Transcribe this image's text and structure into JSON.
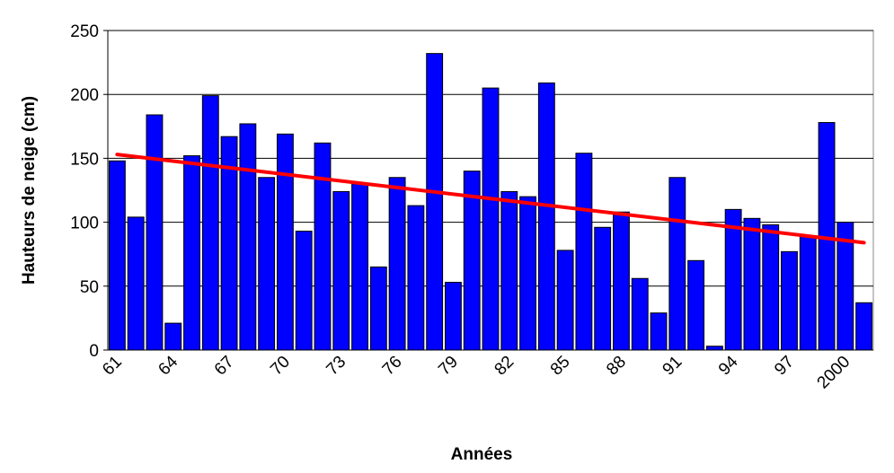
{
  "chart_data": {
    "type": "bar",
    "x_label": "Années",
    "y_label": "Hauteurs de neige (cm)",
    "categories": [
      "61",
      null,
      null,
      "64",
      null,
      null,
      "67",
      null,
      null,
      "70",
      null,
      null,
      "73",
      null,
      null,
      "76",
      null,
      null,
      "79",
      null,
      null,
      "82",
      null,
      null,
      "85",
      null,
      null,
      "88",
      null,
      null,
      "91",
      null,
      null,
      "94",
      null,
      null,
      "97",
      null,
      null,
      "2000",
      null
    ],
    "values": [
      148,
      104,
      184,
      21,
      152,
      199,
      167,
      177,
      135,
      169,
      93,
      162,
      124,
      130,
      65,
      135,
      113,
      232,
      53,
      140,
      205,
      124,
      120,
      209,
      78,
      154,
      96,
      108,
      56,
      29,
      135,
      70,
      3,
      110,
      103,
      98,
      77,
      89,
      178,
      100,
      37
    ],
    "color": "#0000ff",
    "trend_line": {
      "color": "#ff0000",
      "start": 153,
      "end": 84
    },
    "ylim": [
      0,
      250
    ],
    "yticks": [
      0,
      50,
      100,
      150,
      200,
      250
    ],
    "grid": true
  }
}
